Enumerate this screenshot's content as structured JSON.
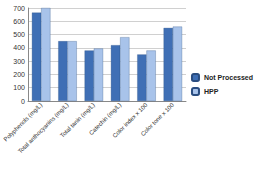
{
  "chart_data": {
    "type": "bar",
    "categories": [
      "Polyphenols (mg/L)",
      "Total anthocyanins (mg/L)",
      "Total tanin (mg/L)",
      "Catechin (mg/L)",
      "Color index x 100",
      "Color tone x 100"
    ],
    "series": [
      {
        "name": "Not Processed",
        "color": "#3f6fb5",
        "values": [
          665,
          450,
          380,
          420,
          350,
          550
        ]
      },
      {
        "name": "HPP",
        "color": "#a8c3ea",
        "values": [
          700,
          450,
          395,
          480,
          380,
          560
        ]
      }
    ],
    "ylim": [
      0,
      700
    ],
    "yticks": [
      0,
      100,
      200,
      300,
      400,
      500,
      600,
      700
    ],
    "grid": true,
    "legend": "right"
  }
}
